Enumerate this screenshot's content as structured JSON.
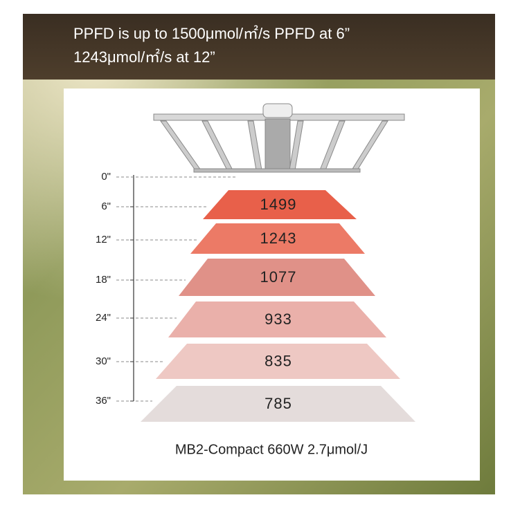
{
  "header": {
    "lines": [
      "PPFD is up to 1500μmol/㎡/s PPFD at 6”",
      "1243μmol/㎡/s  at 12”"
    ]
  },
  "distances": [
    "0\"",
    "6\"",
    "12\"",
    "18\"",
    "24\"",
    "30\"",
    "36\""
  ],
  "ppfd_readings": [
    "1499",
    "1243",
    "1077",
    "933",
    "835",
    "785"
  ],
  "footer": "MB2-Compact 660W 2.7μmol/J"
}
